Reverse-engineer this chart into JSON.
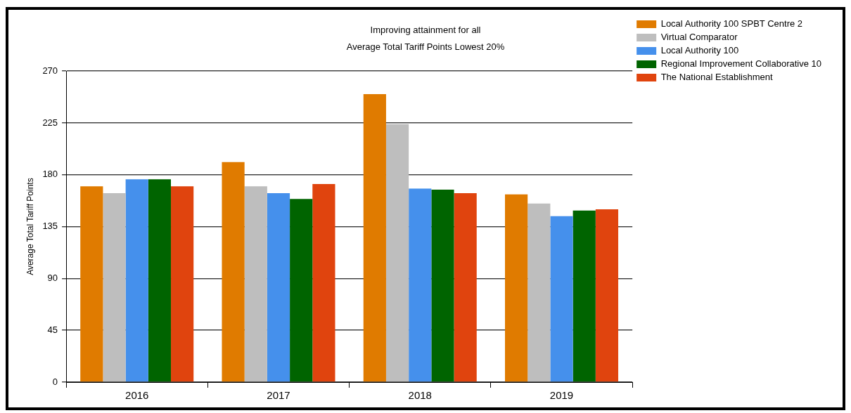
{
  "chart_data": {
    "type": "bar",
    "title": "Improving attainment for all",
    "subtitle": "Average Total Tariff Points Lowest 20%",
    "ylabel": "Average Total Tariff Points",
    "categories": [
      "2016",
      "2017",
      "2018",
      "2019"
    ],
    "series": [
      {
        "name": "Local Authority 100 SPBT Centre 2",
        "color": "#e07b00",
        "values": [
          170,
          191,
          250,
          163
        ]
      },
      {
        "name": "Virtual Comparator",
        "color": "#bebebe",
        "values": [
          164,
          170,
          224,
          155
        ]
      },
      {
        "name": "Local Authority 100",
        "color": "#4590ec",
        "values": [
          176,
          164,
          168,
          144
        ]
      },
      {
        "name": "Regional Improvement Collaborative 10",
        "color": "#006400",
        "values": [
          176,
          159,
          167,
          149
        ]
      },
      {
        "name": "The National Establishment",
        "color": "#e0440e",
        "values": [
          170,
          172,
          164,
          150
        ]
      }
    ],
    "ylim": [
      0,
      270
    ],
    "yticks": [
      0,
      45,
      90,
      135,
      180,
      225,
      270
    ],
    "grid": "y",
    "legend": "top right"
  }
}
